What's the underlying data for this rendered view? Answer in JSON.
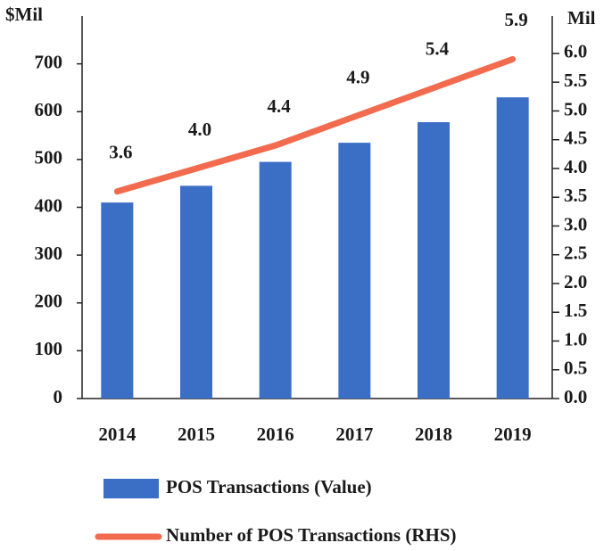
{
  "chart_data": {
    "type": "bar_line",
    "y_label": "$Mil",
    "y2_label": "Mil",
    "categories": [
      "2014",
      "2015",
      "2016",
      "2017",
      "2018",
      "2019"
    ],
    "series": [
      {
        "name": "POS Transactions (Value)",
        "color": "#3b6fc6",
        "type": "bar",
        "values": [
          410,
          445,
          495,
          535,
          578,
          630
        ]
      },
      {
        "name": "Number of POS Transactions (RHS)",
        "color": "#f26b4f",
        "type": "line",
        "axis": "y2",
        "values": [
          3.6,
          4.0,
          4.4,
          4.9,
          5.4,
          5.9
        ],
        "value_labels": [
          "3.6",
          "4.0",
          "4.4",
          "4.9",
          "5.4",
          "5.9"
        ]
      }
    ],
    "ylim": [
      0,
      800
    ],
    "yticks": [
      0,
      100,
      200,
      300,
      400,
      500,
      600,
      700
    ],
    "y2lim": [
      0,
      6.65
    ],
    "y2ticks": [
      {
        "value": 0,
        "label": "0.0"
      },
      0.5,
      {
        "value": 1,
        "label": "1.0"
      },
      1.5,
      {
        "value": 2,
        "label": "2.0"
      },
      2.5,
      {
        "value": 3,
        "label": "3.0"
      },
      3.5,
      {
        "value": 4,
        "label": "4.0"
      },
      4.5,
      {
        "value": 5,
        "label": "5.0"
      },
      5.5,
      {
        "value": 6,
        "label": "6.0"
      }
    ],
    "legend": "bottom"
  }
}
